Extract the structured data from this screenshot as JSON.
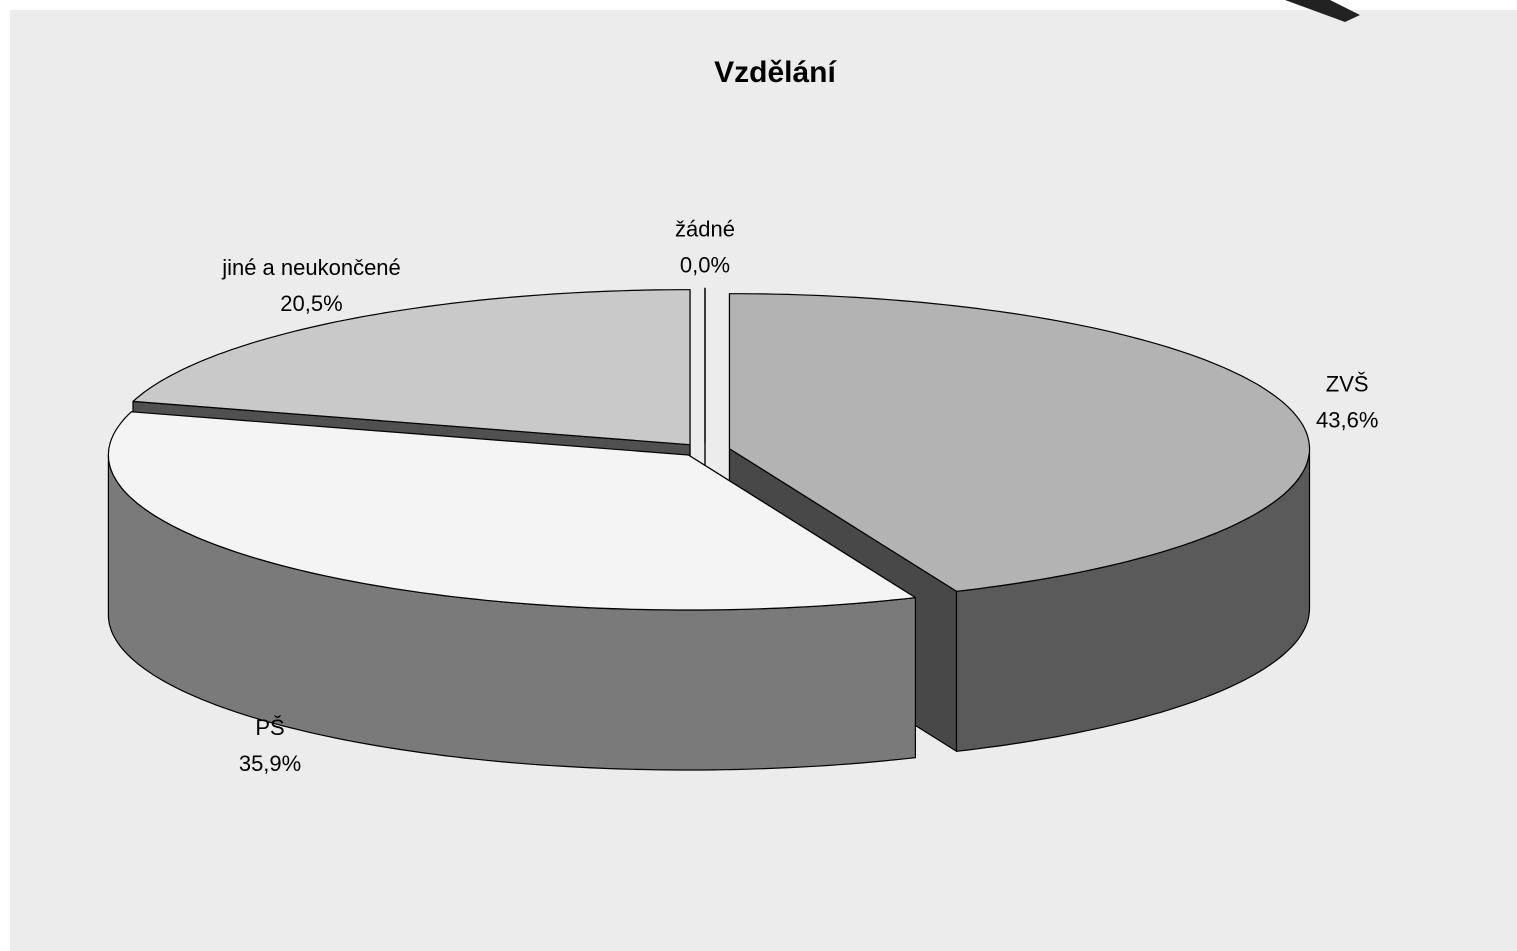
{
  "chart_data": {
    "type": "pie",
    "title": "Vzdělání",
    "categories": [
      "ZVŠ",
      "PŠ",
      "jiné a neukončené",
      "žádné"
    ],
    "values": [
      43.6,
      35.9,
      20.5,
      0.0
    ],
    "value_labels": [
      "43,6%",
      "35,9%",
      "20,5%",
      "0,0%"
    ],
    "colors": [
      "#b3b3b3",
      "#f4f4f4",
      "#c9c9c9",
      "#ffffff"
    ],
    "three_d": true
  }
}
